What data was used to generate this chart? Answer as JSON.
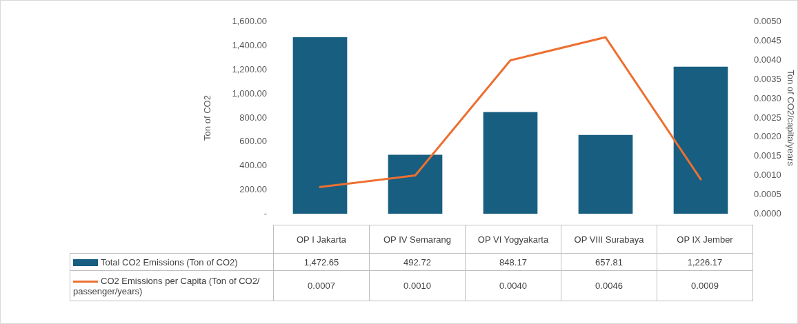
{
  "chart_data": {
    "type": "bar",
    "categories": [
      "OP I Jakarta",
      "OP IV Semarang",
      "OP VI Yogyakarta",
      "OP VIII Surabaya",
      "OP IX Jember"
    ],
    "series": [
      {
        "name": "Total CO2 Emissions (Ton of CO2)",
        "color": "#175e80",
        "values": [
          1472.65,
          492.72,
          848.17,
          657.81,
          1226.17
        ],
        "value_labels": [
          "1,472.65",
          "492.72",
          "848.17",
          "657.81",
          "1,226.17"
        ]
      },
      {
        "name": "CO2 Emissions per Capita  (Ton of CO2/ passenger/years)",
        "type": "line",
        "axis": "y2",
        "color": "#ed7031",
        "values": [
          0.0007,
          0.001,
          0.004,
          0.0046,
          0.0009
        ],
        "value_labels": [
          "0.0007",
          "0.0010",
          "0.0040",
          "0.0046",
          "0.0009"
        ]
      }
    ],
    "ylabel": "Ton of CO2",
    "y2label": "Ton of CO2/capita/years",
    "ylim": [
      0,
      1600
    ],
    "yticks": [
      {
        "value": 0,
        "label": "-"
      },
      {
        "value": 200,
        "label": "200.00"
      },
      {
        "value": 400,
        "label": "400.00"
      },
      {
        "value": 600,
        "label": "600.00"
      },
      {
        "value": 800,
        "label": "800.00"
      },
      {
        "value": 1000,
        "label": "1,000.00"
      },
      {
        "value": 1200,
        "label": "1,200.00"
      },
      {
        "value": 1400,
        "label": "1,400.00"
      },
      {
        "value": 1600,
        "label": "1,600.00"
      }
    ],
    "y2lim": [
      0,
      0.005
    ],
    "y2ticks": [
      {
        "value": 0,
        "label": "0.0000"
      },
      {
        "value": 0.0005,
        "label": "0.0005"
      },
      {
        "value": 0.001,
        "label": "0.0010"
      },
      {
        "value": 0.0015,
        "label": "0.0015"
      },
      {
        "value": 0.002,
        "label": "0.0020"
      },
      {
        "value": 0.0025,
        "label": "0.0025"
      },
      {
        "value": 0.003,
        "label": "0.0030"
      },
      {
        "value": 0.0035,
        "label": "0.0035"
      },
      {
        "value": 0.004,
        "label": "0.0040"
      },
      {
        "value": 0.0045,
        "label": "0.0045"
      },
      {
        "value": 0.005,
        "label": "0.0050"
      }
    ],
    "legend": "bottom",
    "marker": "none",
    "line_style": "solid",
    "data_labels": true
  }
}
